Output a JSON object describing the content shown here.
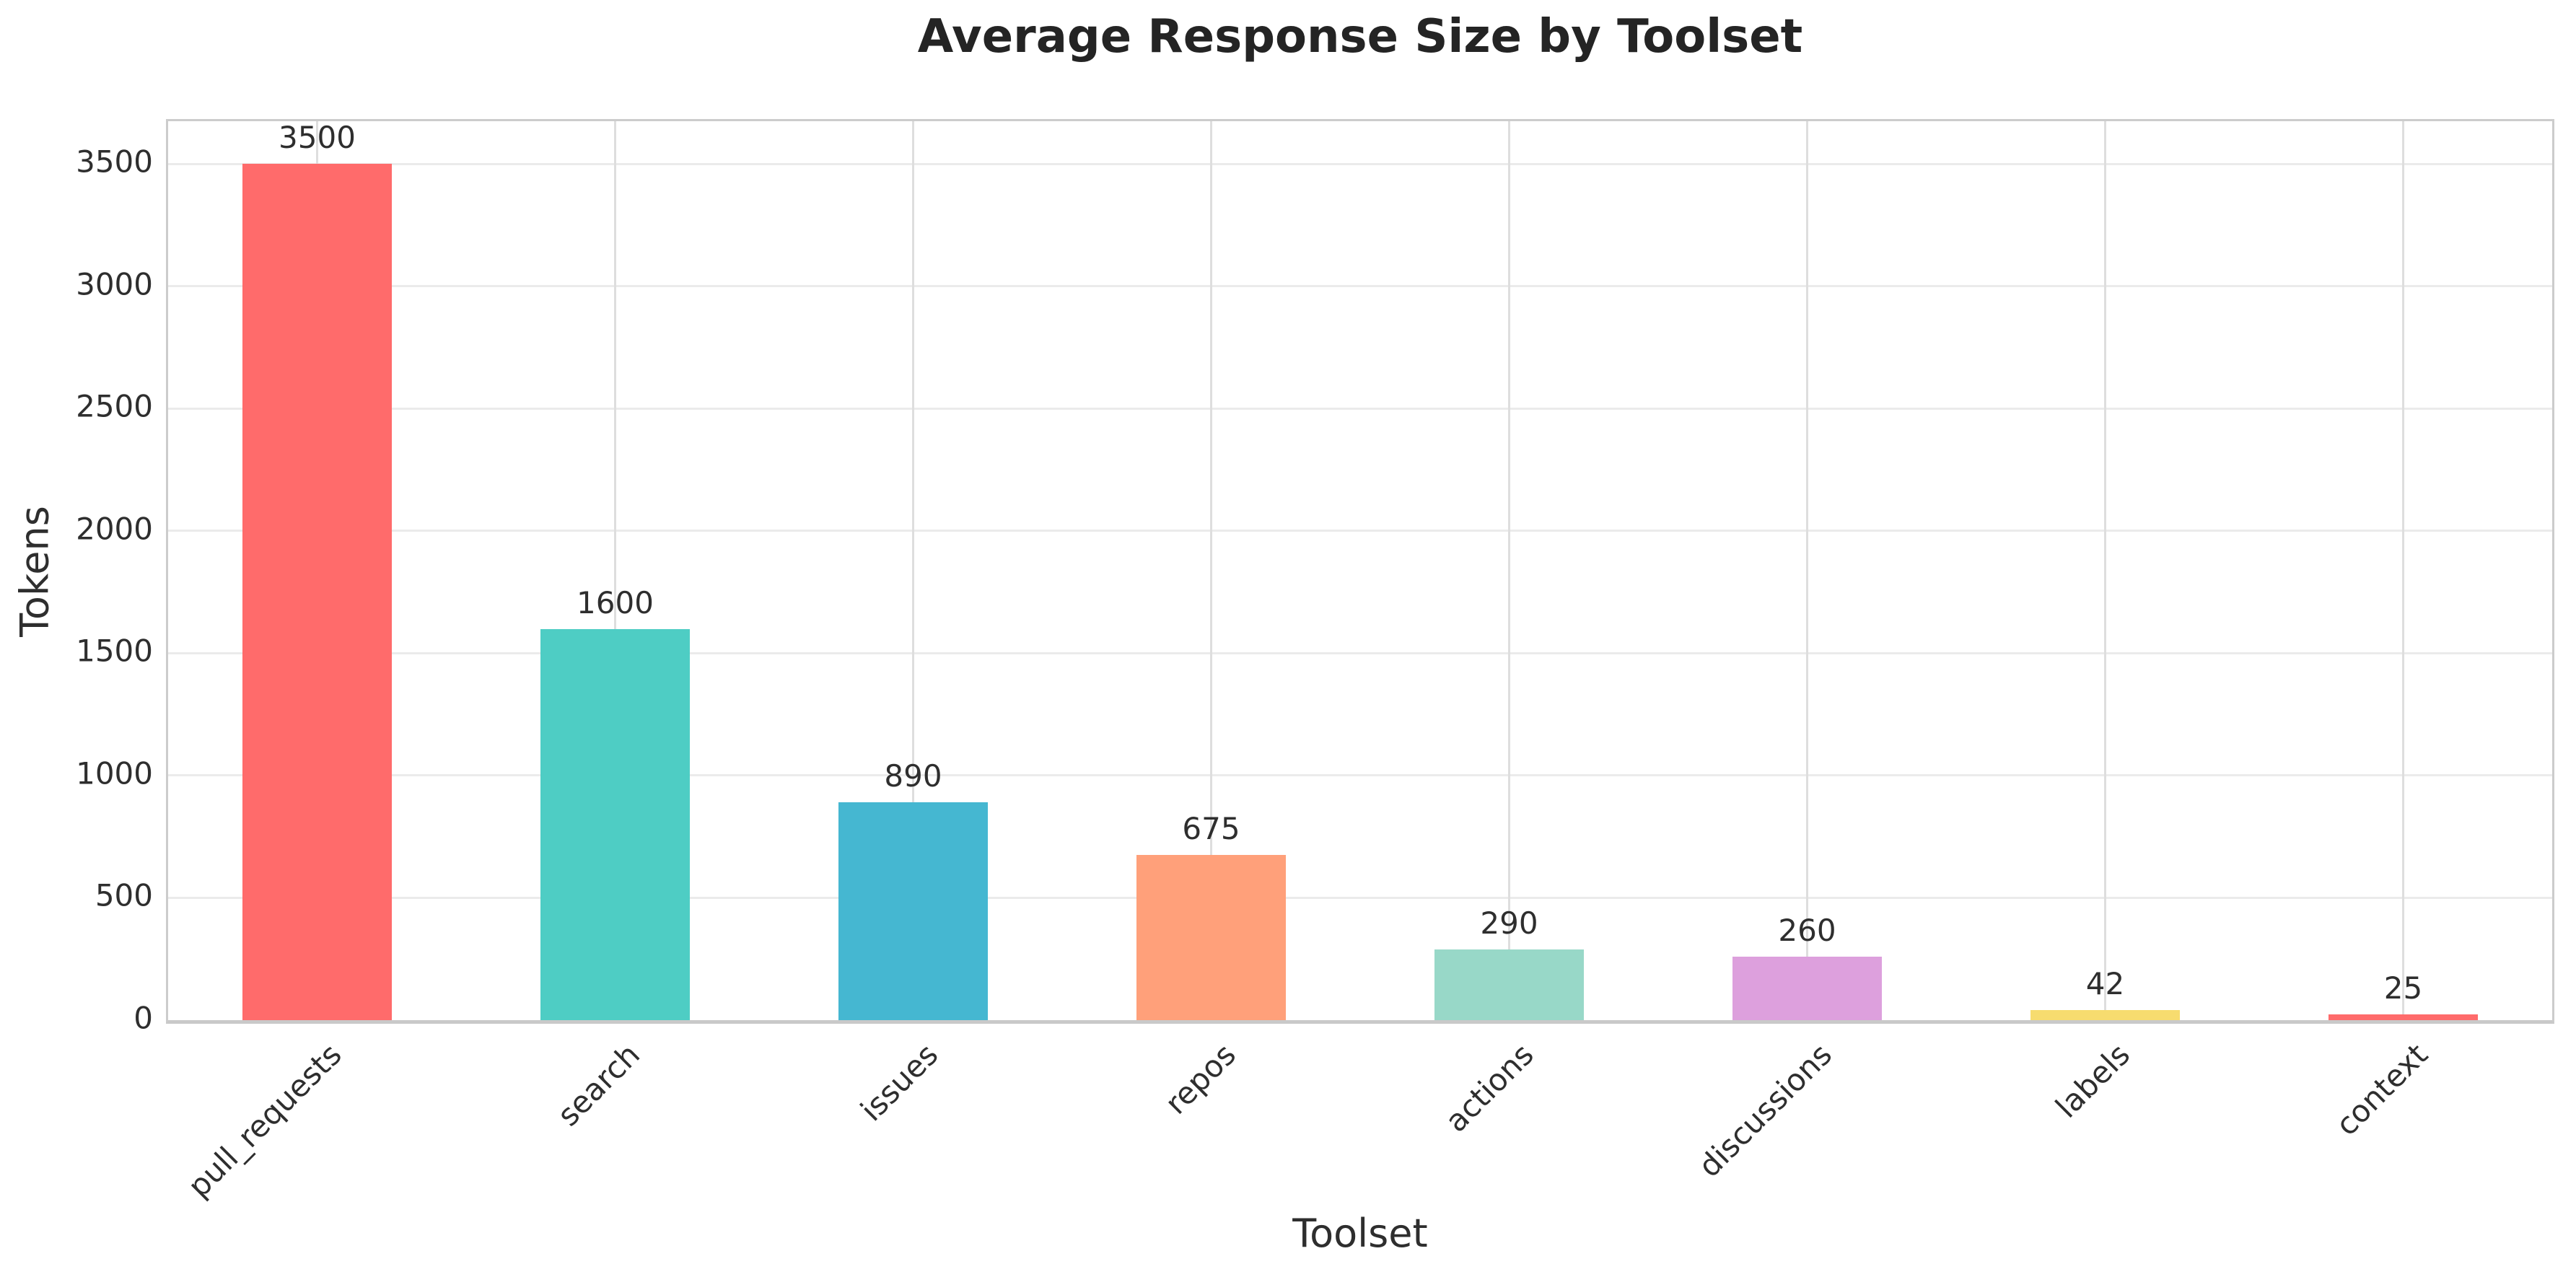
{
  "chart_data": {
    "type": "bar",
    "title": "Average Response Size by Toolset",
    "xlabel": "Toolset",
    "ylabel": "Tokens",
    "categories": [
      "pull_requests",
      "search",
      "issues",
      "repos",
      "actions",
      "discussions",
      "labels",
      "context"
    ],
    "values": [
      3500,
      1600,
      890,
      675,
      290,
      260,
      42,
      25
    ],
    "bar_labels": [
      "3500",
      "1600",
      "890",
      "675",
      "290",
      "260",
      "42",
      "25"
    ],
    "bar_colors": [
      "#FF6B6B",
      "#4ECDC4",
      "#45B7D1",
      "#FFA07A",
      "#98D8C8",
      "#DDA0DD",
      "#F7DC6F",
      "#FF6B6B"
    ],
    "yticks": [
      "0",
      "500",
      "1000",
      "1500",
      "2000",
      "2500",
      "3000",
      "3500"
    ],
    "ytick_values": [
      0,
      500,
      1000,
      1500,
      2000,
      2500,
      3000,
      3500
    ],
    "ylim": [
      0,
      3675
    ],
    "grid": true,
    "legend": false,
    "colors": {
      "background": "#ffffff",
      "hgrid": "#ebebeb",
      "vgrid": "#dedede",
      "spine": "#cccccc",
      "text": "#2e2e2e",
      "title": "#242424"
    }
  }
}
